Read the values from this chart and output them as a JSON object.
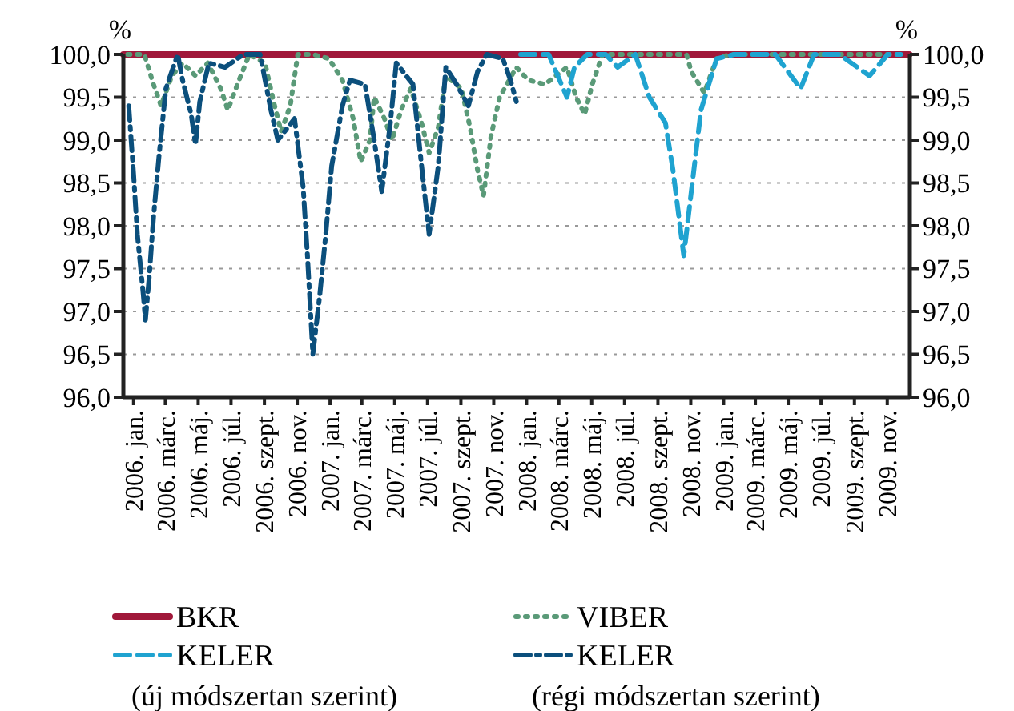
{
  "chart_data": {
    "type": "line",
    "ylabel": "%",
    "y2label": "%",
    "xlim": [
      "2006-01-01",
      "2010-01-01"
    ],
    "xticks": [
      {
        "value": "2006-01-20",
        "label": "2006. jan."
      },
      {
        "value": "2006-03-20",
        "label": "2006. márc."
      },
      {
        "value": "2006-05-20",
        "label": "2006. máj."
      },
      {
        "value": "2006-07-20",
        "label": "2006. júl."
      },
      {
        "value": "2006-09-20",
        "label": "2006. szept."
      },
      {
        "value": "2006-11-20",
        "label": "2006. nov."
      },
      {
        "value": "2007-01-20",
        "label": "2007. jan."
      },
      {
        "value": "2007-03-20",
        "label": "2007. márc."
      },
      {
        "value": "2007-05-20",
        "label": "2007. máj."
      },
      {
        "value": "2007-07-20",
        "label": "2007. júl."
      },
      {
        "value": "2007-09-20",
        "label": "2007. szept."
      },
      {
        "value": "2007-11-20",
        "label": "2007. nov."
      },
      {
        "value": "2008-01-20",
        "label": "2008. jan."
      },
      {
        "value": "2008-03-20",
        "label": "2008. márc."
      },
      {
        "value": "2008-05-20",
        "label": "2008. máj."
      },
      {
        "value": "2008-07-20",
        "label": "2008. júl."
      },
      {
        "value": "2008-09-20",
        "label": "2008. szept."
      },
      {
        "value": "2008-11-20",
        "label": "2008. nov."
      },
      {
        "value": "2009-01-20",
        "label": "2009. jan."
      },
      {
        "value": "2009-03-20",
        "label": "2009. márc."
      },
      {
        "value": "2009-05-20",
        "label": "2009. máj."
      },
      {
        "value": "2009-07-20",
        "label": "2009. júl."
      },
      {
        "value": "2009-09-20",
        "label": "2009. szept."
      },
      {
        "value": "2009-11-20",
        "label": "2009. nov."
      }
    ],
    "ylim": [
      96,
      100
    ],
    "yticks": [
      {
        "value": 96,
        "label": "96,0"
      },
      {
        "value": 96.5,
        "label": "96,5"
      },
      {
        "value": 97,
        "label": "97,0"
      },
      {
        "value": 97.5,
        "label": "97,5"
      },
      {
        "value": 98,
        "label": "98,0"
      },
      {
        "value": 98.5,
        "label": "98,5"
      },
      {
        "value": 99,
        "label": "99,0"
      },
      {
        "value": 99.5,
        "label": "99,5"
      },
      {
        "value": 100,
        "label": "100,0"
      }
    ],
    "y2lim": [
      96,
      100
    ],
    "y2ticks": [
      {
        "value": 96,
        "label": "96,0"
      },
      {
        "value": 96.5,
        "label": "96,5"
      },
      {
        "value": 97,
        "label": "97,0"
      },
      {
        "value": 97.5,
        "label": "97,5"
      },
      {
        "value": 98,
        "label": "98,0"
      },
      {
        "value": 98.5,
        "label": "98,5"
      },
      {
        "value": 99,
        "label": "99,0"
      },
      {
        "value": 99.5,
        "label": "99,5"
      },
      {
        "value": 100,
        "label": "100,0"
      }
    ],
    "grid": "y",
    "legend": "bottom",
    "series": [
      {
        "name": "BKR",
        "color": "#a0183a",
        "line_style": "solid",
        "x": [
          "2006-01-01",
          "2009-12-31"
        ],
        "values": [
          100,
          100
        ]
      },
      {
        "name": "VIBER",
        "color": "#5a9a78",
        "line_style": "dotted",
        "x": [
          "2006-01-09",
          "2006-02-09",
          "2006-02-26",
          "2006-03-12",
          "2006-04-01",
          "2006-04-21",
          "2006-05-15",
          "2006-06-07",
          "2006-07-01",
          "2006-07-14",
          "2006-08-04",
          "2006-08-23",
          "2006-09-21",
          "2006-10-07",
          "2006-10-21",
          "2006-11-07",
          "2006-11-21",
          "2006-12-19",
          "2007-01-18",
          "2007-02-12",
          "2007-03-04",
          "2007-03-18",
          "2007-04-04",
          "2007-04-12",
          "2007-05-01",
          "2007-05-15",
          "2007-06-01",
          "2007-06-19",
          "2007-07-09",
          "2007-07-23",
          "2007-08-09",
          "2007-08-23",
          "2007-09-21",
          "2007-10-07",
          "2007-10-21",
          "2007-11-01",
          "2007-11-15",
          "2007-12-01",
          "2008-01-01",
          "2008-01-23",
          "2008-02-23",
          "2008-04-04",
          "2008-04-21",
          "2008-05-07",
          "2008-05-21",
          "2008-06-09",
          "2008-11-12",
          "2008-11-21",
          "2008-12-15",
          "2009-01-07",
          "2009-02-01",
          "2009-12-15"
        ],
        "values": [
          100,
          100,
          99.65,
          99.4,
          99.75,
          99.9,
          99.75,
          99.9,
          99.6,
          99.35,
          99.7,
          100,
          99.9,
          99.45,
          99.1,
          99.4,
          100,
          100,
          99.95,
          99.7,
          99.25,
          98.75,
          99.0,
          99.5,
          99.25,
          99.0,
          99.35,
          99.6,
          99.2,
          98.85,
          99.15,
          99.75,
          99.6,
          99.15,
          98.65,
          98.35,
          99.05,
          99.5,
          99.85,
          99.7,
          99.65,
          99.85,
          99.5,
          99.3,
          99.65,
          100,
          100,
          99.8,
          99.55,
          99.95,
          100,
          100
        ]
      },
      {
        "name": "KELER (új módszertan szerint)",
        "color": "#1fa3d0",
        "line_style": "dashed",
        "x": [
          "2008-01-09",
          "2008-02-15",
          "2008-03-01",
          "2008-04-04",
          "2008-04-18",
          "2008-05-12",
          "2008-06-15",
          "2008-07-07",
          "2008-08-09",
          "2008-09-04",
          "2008-10-04",
          "2008-10-18",
          "2008-11-07",
          "2008-11-21",
          "2008-12-09",
          "2009-01-07",
          "2009-02-09",
          "2009-04-26",
          "2009-06-12",
          "2009-07-07",
          "2009-08-23",
          "2009-10-18",
          "2009-11-21",
          "2009-12-15"
        ],
        "values": [
          100,
          100,
          100,
          99.5,
          99.85,
          100,
          100,
          99.85,
          100,
          99.5,
          99.2,
          98.65,
          97.65,
          98.4,
          99.35,
          99.95,
          100,
          100,
          99.6,
          100,
          100,
          99.75,
          100,
          100
        ]
      },
      {
        "name": "KELER (régi módszertan szerint)",
        "color": "#0b4f7c",
        "line_style": "dashdot",
        "x": [
          "2006-01-11",
          "2006-01-20",
          "2006-01-27",
          "2006-02-07",
          "2006-02-11",
          "2006-02-18",
          "2006-02-26",
          "2006-03-08",
          "2006-03-21",
          "2006-04-12",
          "2006-04-21",
          "2006-05-07",
          "2006-05-15",
          "2006-05-23",
          "2006-06-09",
          "2006-07-09",
          "2006-08-12",
          "2006-09-12",
          "2006-10-02",
          "2006-10-15",
          "2006-11-15",
          "2006-12-01",
          "2006-12-09",
          "2006-12-19",
          "2007-01-01",
          "2007-01-12",
          "2007-01-23",
          "2007-02-12",
          "2007-02-26",
          "2007-03-26",
          "2007-04-12",
          "2007-04-26",
          "2007-05-12",
          "2007-05-23",
          "2007-06-23",
          "2007-07-09",
          "2007-07-23",
          "2007-08-09",
          "2007-08-23",
          "2007-09-12",
          "2007-10-04",
          "2007-10-21",
          "2007-11-07",
          "2007-12-07",
          "2007-12-21",
          "2008-01-01"
        ],
        "values": [
          99.4,
          98.6,
          97.9,
          97.2,
          96.9,
          97.4,
          98.1,
          98.8,
          99.6,
          100,
          99.7,
          99.3,
          98.95,
          99.45,
          99.9,
          99.85,
          100,
          100,
          99.35,
          99.0,
          99.25,
          98.45,
          97.65,
          96.5,
          97.2,
          97.9,
          98.7,
          99.4,
          99.7,
          99.65,
          99.0,
          98.4,
          99.2,
          99.9,
          99.65,
          98.7,
          97.9,
          98.7,
          99.85,
          99.65,
          99.4,
          99.8,
          100,
          99.95,
          99.7,
          99.45
        ]
      }
    ]
  }
}
